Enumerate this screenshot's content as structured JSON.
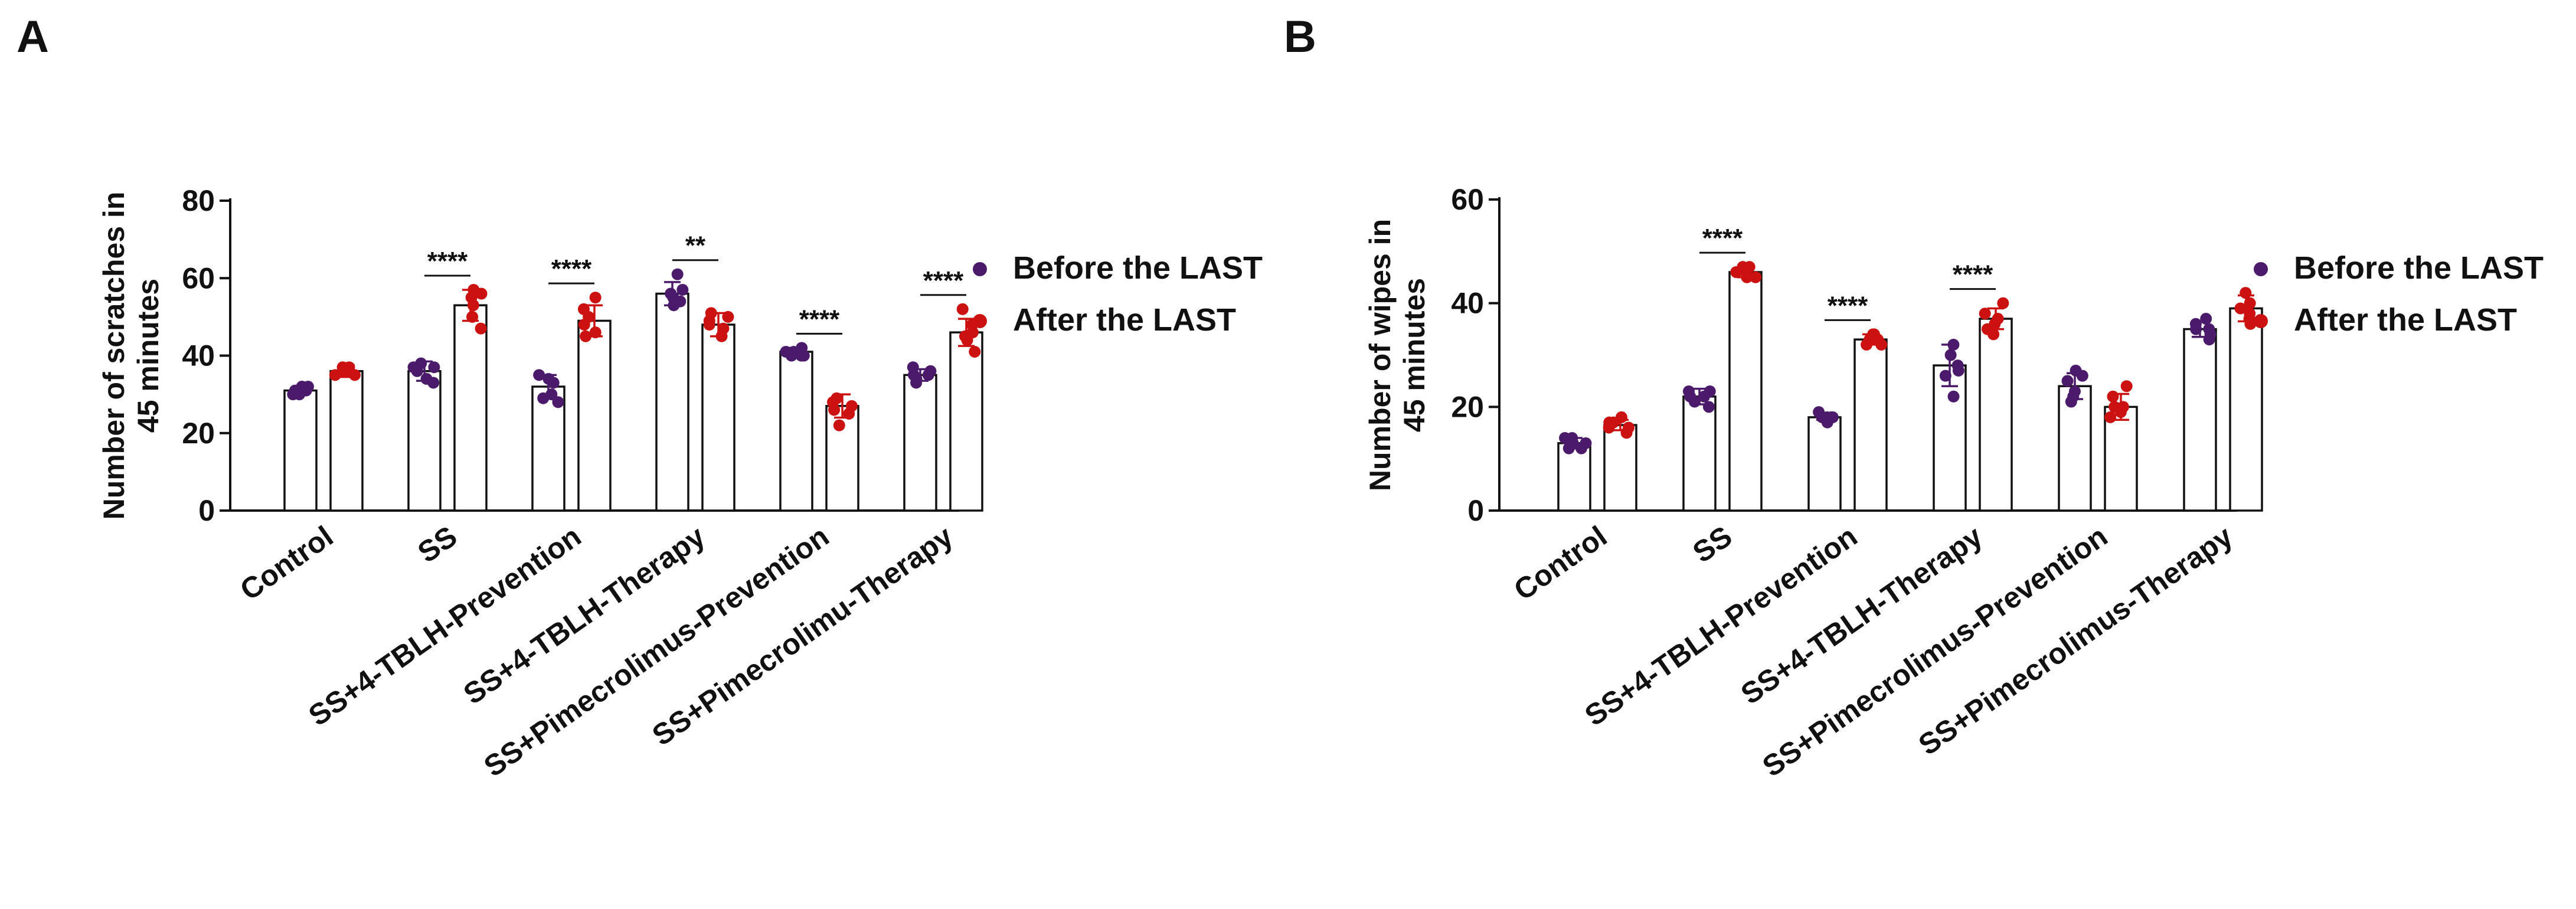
{
  "chart_data": [
    {
      "panel_label": "A",
      "type": "bar",
      "ylabel_lines": [
        "Number of scratches in",
        "45 minutes"
      ],
      "ylim": [
        0,
        80
      ],
      "yticks": [
        0,
        20,
        40,
        60,
        80
      ],
      "categories": [
        "Control",
        "SS",
        "SS+4-TBLH-Prevention",
        "SS+4-TBLH-Therapy",
        "SS+Pimecrolimus-Prevention",
        "SS+Pimecrolimu-Therapy"
      ],
      "legend": [
        "Before the LAST",
        "After the LAST"
      ],
      "series": [
        {
          "name": "Before the LAST",
          "color": "#4b1a6b",
          "values": [
            31,
            36,
            32,
            56,
            41,
            35
          ],
          "errors": [
            1,
            2.5,
            3,
            3,
            1,
            1.5
          ],
          "points": [
            [
              30,
              31,
              32,
              30,
              31,
              32
            ],
            [
              34,
              37,
              38,
              33,
              36,
              37
            ],
            [
              30,
              34,
              28,
              33,
              35,
              29
            ],
            [
              53,
              57,
              61,
              55,
              56,
              54
            ],
            [
              40,
              41,
              42,
              40,
              41,
              40
            ],
            [
              33,
              35,
              37,
              34,
              36,
              35
            ]
          ]
        },
        {
          "name": "After the LAST",
          "color": "#cc1111",
          "values": [
            36,
            53,
            49,
            48,
            27,
            46
          ],
          "errors": [
            1.5,
            4,
            4,
            3,
            3,
            3.5
          ],
          "points": [
            [
              35,
              36,
              37,
              36,
              35,
              37
            ],
            [
              47,
              50,
              55,
              57,
              53,
              56
            ],
            [
              45,
              48,
              52,
              50,
              55,
              46
            ],
            [
              45,
              48,
              51,
              49,
              47,
              50
            ],
            [
              22,
              25,
              28,
              27,
              29,
              26
            ],
            [
              41,
              44,
              48,
              52,
              46,
              45
            ]
          ]
        }
      ],
      "significance": [
        null,
        "****",
        "****",
        "**",
        "****",
        "****"
      ]
    },
    {
      "panel_label": "B",
      "type": "bar",
      "ylabel_lines": [
        "Number of wipes in",
        "45 minutes"
      ],
      "ylim": [
        0,
        60
      ],
      "yticks": [
        0,
        20,
        40,
        60
      ],
      "categories": [
        "Control",
        "SS",
        "SS+4-TBLH-Prevention",
        "SS+4-TBLH-Therapy",
        "SS+Pimecrolimus-Prevention",
        "SS+Pimecrolimus-Therapy"
      ],
      "legend": [
        "Before the LAST",
        "After the LAST"
      ],
      "series": [
        {
          "name": "Before the LAST",
          "color": "#4b1a6b",
          "values": [
            13,
            22,
            18,
            28,
            24,
            35
          ],
          "errors": [
            1,
            1.5,
            0.5,
            4,
            2.5,
            1.5
          ],
          "points": [
            [
              12,
              13,
              14,
              13,
              12,
              14
            ],
            [
              20,
              22,
              23,
              21,
              23,
              22
            ],
            [
              18,
              18,
              17,
              18,
              19,
              18
            ],
            [
              22,
              26,
              30,
              32,
              28,
              27
            ],
            [
              21,
              23,
              26,
              27,
              22,
              25
            ],
            [
              33,
              35,
              36,
              37,
              34,
              35
            ]
          ]
        },
        {
          "name": "After the LAST",
          "color": "#cc1111",
          "values": [
            16.5,
            46,
            33,
            37,
            20,
            39
          ],
          "errors": [
            1,
            1,
            1,
            2,
            2.5,
            2.5
          ],
          "points": [
            [
              16,
              17,
              18,
              16,
              15,
              17
            ],
            [
              45,
              46,
              47,
              46,
              45,
              47
            ],
            [
              32,
              33,
              34,
              33,
              34,
              32
            ],
            [
              34,
              36,
              38,
              40,
              37,
              35
            ],
            [
              18,
              20,
              22,
              24,
              19,
              20
            ],
            [
              36,
              38,
              40,
              42,
              39,
              37
            ]
          ]
        }
      ],
      "significance": [
        null,
        "****",
        "****",
        "****",
        null,
        null
      ]
    }
  ]
}
